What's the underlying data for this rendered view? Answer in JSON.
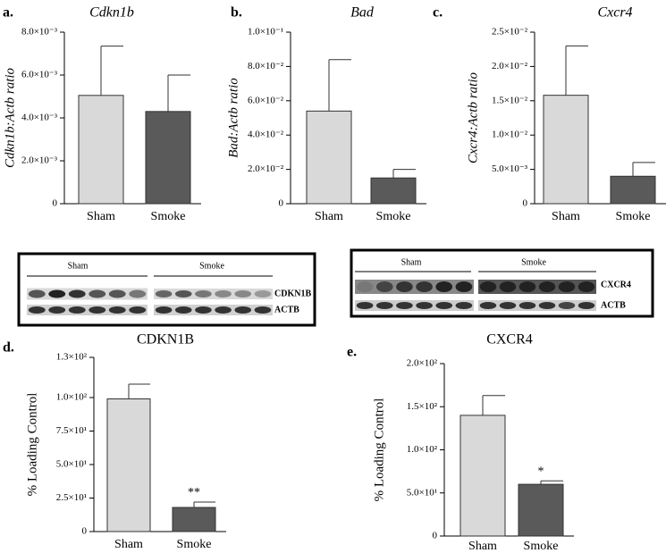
{
  "chart_data": [
    {
      "type": "bar",
      "panel": "a.",
      "title": "Cdkn1b",
      "y_label": "Cdkn1b:Actb ratio",
      "categories": [
        "Sham",
        "Smoke"
      ],
      "values": [
        0.00505,
        0.0043
      ],
      "errors": [
        0.0023,
        0.0017
      ],
      "colors": [
        "#d9d9d9",
        "#5a5a5a"
      ],
      "ylim": [
        0,
        0.008
      ],
      "yticks": [
        0,
        {
          "value": 0.002,
          "label": "2.0×10⁻³"
        },
        {
          "value": 0.004,
          "label": "4.0×10⁻³"
        },
        {
          "value": 0.006,
          "label": "6.0×10⁻³"
        },
        {
          "value": 0.008,
          "label": "8.0×10⁻³"
        }
      ]
    },
    {
      "type": "bar",
      "panel": "b.",
      "title": "Bad",
      "y_label": "Bad:Actb ratio",
      "categories": [
        "Sham",
        "Smoke"
      ],
      "values": [
        0.054,
        0.015
      ],
      "errors": [
        0.03,
        0.005
      ],
      "colors": [
        "#d9d9d9",
        "#5a5a5a"
      ],
      "ylim": [
        0,
        0.1
      ],
      "yticks": [
        0,
        {
          "value": 0.02,
          "label": "2.0×10⁻²"
        },
        {
          "value": 0.04,
          "label": "4.0×10⁻²"
        },
        {
          "value": 0.06,
          "label": "6.0×10⁻²"
        },
        {
          "value": 0.08,
          "label": "8.0×10⁻²"
        },
        {
          "value": 0.1,
          "label": "1.0×10⁻¹"
        }
      ]
    },
    {
      "type": "bar",
      "panel": "c.",
      "title": "Cxcr4",
      "y_label": "Cxcr4:Actb ratio",
      "categories": [
        "Sham",
        "Smoke"
      ],
      "values": [
        0.0158,
        0.004
      ],
      "errors": [
        0.0072,
        0.002
      ],
      "colors": [
        "#d9d9d9",
        "#5a5a5a"
      ],
      "ylim": [
        0,
        0.025
      ],
      "yticks": [
        0,
        {
          "value": 0.005,
          "label": "5.0×10⁻³"
        },
        {
          "value": 0.01,
          "label": "1.0×10⁻²"
        },
        {
          "value": 0.015,
          "label": "1.5×10⁻²"
        },
        {
          "value": 0.02,
          "label": "2.0×10⁻²"
        },
        {
          "value": 0.025,
          "label": "2.5×10⁻²"
        }
      ]
    },
    {
      "type": "bar",
      "panel": "d.",
      "title": "CDKN1B",
      "y_label": "% Loading Control",
      "annotation": "**",
      "categories": [
        "Sham",
        "Smoke"
      ],
      "values": [
        99,
        18
      ],
      "errors": [
        11,
        4
      ],
      "colors": [
        "#d9d9d9",
        "#5a5a5a"
      ],
      "ylim": [
        0,
        130
      ],
      "yticks": [
        0,
        {
          "value": 25,
          "label": "2.5×10¹"
        },
        {
          "value": 50,
          "label": "5.0×10¹"
        },
        {
          "value": 75,
          "label": "7.5×10¹"
        },
        {
          "value": 100,
          "label": "1.0×10²"
        },
        {
          "value": 130,
          "label": "1.3×10²"
        }
      ]
    },
    {
      "type": "bar",
      "panel": "e.",
      "title": "CXCR4",
      "y_label": "% Loading Control",
      "annotation": "*",
      "categories": [
        "Sham",
        "Smoke"
      ],
      "values": [
        140,
        60
      ],
      "errors": [
        23,
        4
      ],
      "colors": [
        "#d9d9d9",
        "#5a5a5a"
      ],
      "ylim": [
        0,
        200
      ],
      "yticks": [
        0,
        {
          "value": 50,
          "label": "5.0×10¹"
        },
        {
          "value": 100,
          "label": "1.0×10²"
        },
        {
          "value": 150,
          "label": "1.5×10²"
        },
        {
          "value": 200,
          "label": "2.0×10²"
        }
      ]
    }
  ],
  "blots": [
    {
      "groups": [
        "Sham",
        "Smoke"
      ],
      "rows": [
        "CDKN1B",
        "ACTB"
      ]
    },
    {
      "groups": [
        "Sham",
        "Smoke"
      ],
      "rows": [
        "CXCR4",
        "ACTB"
      ]
    }
  ]
}
